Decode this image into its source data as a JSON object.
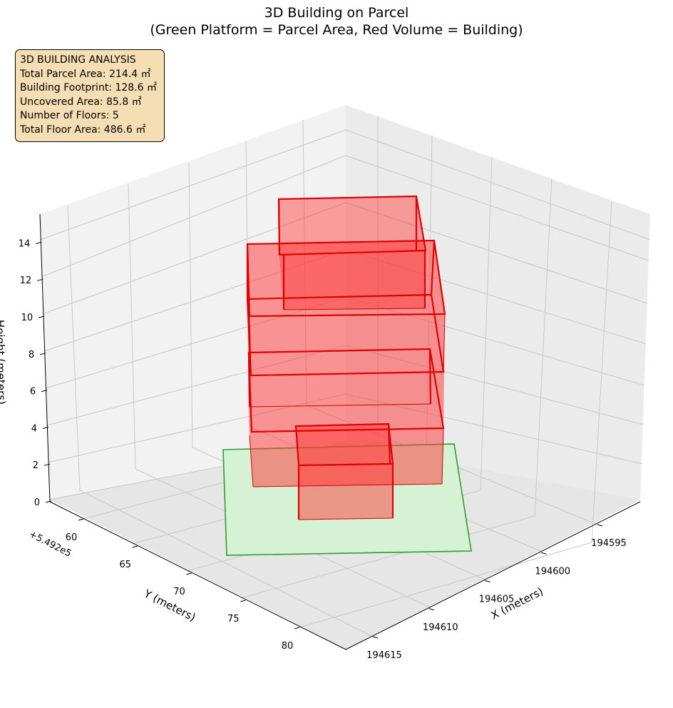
{
  "title_line1": "3D Building on Parcel",
  "title_line2": "(Green Platform = Parcel Area, Red Volume = Building)",
  "info": {
    "heading": "3D BUILDING ANALYSIS",
    "total_parcel_area": "Total Parcel Area: 214.4 ㎡",
    "building_footprint": "Building Footprint: 128.6 ㎡",
    "uncovered_area": "Uncovered Area: 85.8 ㎡",
    "floors": "Number of Floors: 5",
    "total_floor_area": "Total Floor Area: 486.6 ㎡"
  },
  "chart_data": {
    "type": "3d-volume",
    "xlabel": "X (meters)",
    "ylabel": "Y (meters)",
    "zlabel": "Height (meters)",
    "y_offset_label": "+5.492e5",
    "x_ticks": [
      "194595",
      "194600",
      "194605",
      "194610",
      "194615"
    ],
    "y_ticks": [
      "60",
      "65",
      "70",
      "75",
      "80"
    ],
    "z_ticks": [
      "0",
      "2",
      "4",
      "6",
      "8",
      "10",
      "12",
      "14"
    ],
    "grid": true,
    "colors": {
      "parcel_fill": "#d5f2d5",
      "parcel_edge": "#2ca02c",
      "building_fill": "#ff3333",
      "building_edge": "#e00000"
    }
  }
}
